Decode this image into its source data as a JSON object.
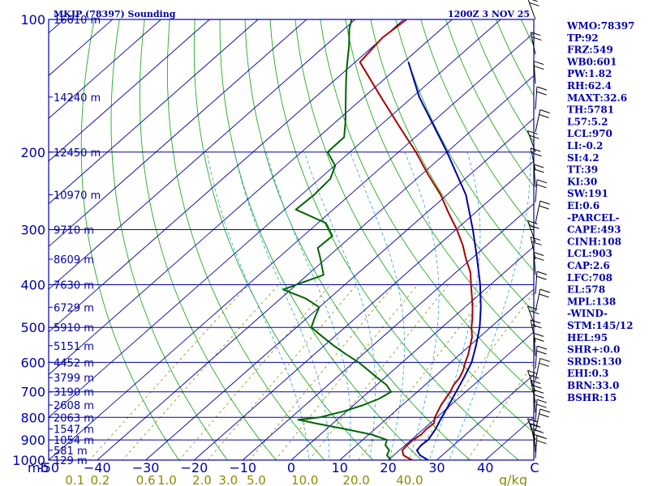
{
  "header": {
    "station": "MKJP (78397) Sounding",
    "time": "1200Z  3 NOV 25"
  },
  "units": {
    "pressure": "mb",
    "mixing_ratio": "g/kg"
  },
  "indices": [
    "WMO:78397",
    "TP:92",
    "FRZ:549",
    "WB0:601",
    "PW:1.82",
    "RH:62.4",
    "MAXT:32.6",
    "TH:5781",
    "L57:5.2",
    "LCL:970",
    "LI:-0.2",
    "SI:4.2",
    "TT:39",
    "KI:30",
    "SW:191",
    "EI:0.6",
    "-PARCEL-",
    "CAPE:493",
    "CINH:108",
    "LCL:903",
    "CAP:2.6",
    "LFC:708",
    "EL:578",
    "MPL:138",
    "-WIND-",
    "STM:145/12",
    "HEL:95",
    "SHR+:0.0",
    "SRDS:130",
    "EHI:0.3",
    "BRN:33.0",
    "BSHR:15"
  ],
  "chart_data": {
    "type": "line",
    "title": "MKJP (78397) Sounding",
    "subtitle": "1200Z  3 NOV 25",
    "xlabel": "",
    "ylabel": "mb",
    "ylim": [
      1000,
      100
    ],
    "xlim": [
      -50,
      50
    ],
    "y_log_scale": true,
    "pressure_levels": [
      100,
      200,
      300,
      400,
      500,
      600,
      700,
      800,
      900,
      1000
    ],
    "pressure_labels": [
      "100",
      "200",
      "300",
      "400",
      "500",
      "600",
      "700",
      "800",
      "900",
      "1000"
    ],
    "temperature_ticks": [
      -50,
      -40,
      -30,
      -20,
      -10,
      0,
      10,
      20,
      30,
      40
    ],
    "temperature_labels": [
      "-50",
      "−40",
      "−30",
      "−20",
      "−10",
      "0",
      "10",
      "20",
      "30",
      "40"
    ],
    "mixing_ratio_labels": [
      {
        "label": "0.1",
        "x": -44.6
      },
      {
        "label": "0.2",
        "x": -39.4
      },
      {
        "label": "0.6",
        "x": -30.0
      },
      {
        "label": "1.0",
        "x": -25.6
      },
      {
        "label": "2.0",
        "x": -18.4
      },
      {
        "label": "3.0",
        "x": -13.0
      },
      {
        "label": "5.0",
        "x": -7.2
      },
      {
        "label": "10.0",
        "x": 2.8
      },
      {
        "label": "20.0",
        "x": 13.4
      },
      {
        "label": "40.0",
        "x": 24.4
      }
    ],
    "height_labels": [
      {
        "p": 100,
        "label": "16610 m"
      },
      {
        "p": 150,
        "label": "14240 m"
      },
      {
        "p": 200,
        "label": "12450 m"
      },
      {
        "p": 250,
        "label": "10970 m"
      },
      {
        "p": 300,
        "label": "9710 m"
      },
      {
        "p": 350,
        "label": "8609 m"
      },
      {
        "p": 400,
        "label": "7630 m"
      },
      {
        "p": 450,
        "label": "6729 m"
      },
      {
        "p": 500,
        "label": "5910 m"
      },
      {
        "p": 550,
        "label": "5151 m"
      },
      {
        "p": 600,
        "label": "4452 m"
      },
      {
        "p": 650,
        "label": "3799 m"
      },
      {
        "p": 700,
        "label": "3190 m"
      },
      {
        "p": 750,
        "label": "2608 m"
      },
      {
        "p": 800,
        "label": "2063 m"
      },
      {
        "p": 850,
        "label": "1547 m"
      },
      {
        "p": 900,
        "label": "1054 m"
      },
      {
        "p": 950,
        "label": "581 m"
      },
      {
        "p": 1000,
        "label": "129 m"
      }
    ],
    "series": [
      {
        "color": "#aa0000",
        "points": [
          [
            1006,
            24.6
          ],
          [
            1000,
            24.8
          ],
          [
            975,
            22.0
          ],
          [
            950,
            20.6
          ],
          [
            925,
            20.4
          ],
          [
            900,
            20.4
          ],
          [
            875,
            20.8
          ],
          [
            850,
            20.6
          ],
          [
            825,
            20.8
          ],
          [
            800,
            19.6
          ],
          [
            775,
            18.8
          ],
          [
            750,
            18.0
          ],
          [
            725,
            17.4
          ],
          [
            700,
            16.8
          ],
          [
            675,
            15.9
          ],
          [
            650,
            15.4
          ],
          [
            625,
            14.4
          ],
          [
            600,
            13.0
          ],
          [
            575,
            11.7
          ],
          [
            550,
            10.1
          ],
          [
            525,
            8.4
          ],
          [
            500,
            6.1
          ],
          [
            475,
            4.0
          ],
          [
            450,
            1.6
          ],
          [
            425,
            -1.1
          ],
          [
            400,
            -4.0
          ],
          [
            375,
            -7.0
          ],
          [
            350,
            -11.0
          ],
          [
            325,
            -15.0
          ],
          [
            300,
            -19.8
          ],
          [
            275,
            -25.4
          ],
          [
            250,
            -31.3
          ],
          [
            225,
            -38.6
          ],
          [
            200,
            -46.4
          ],
          [
            175,
            -55.8
          ],
          [
            150,
            -66.5
          ],
          [
            125,
            -79.0
          ],
          [
            110,
            -80.1
          ],
          [
            100,
            -79.4
          ]
        ]
      },
      {
        "color": "#006400",
        "points": [
          [
            1006,
            20.8
          ],
          [
            1000,
            20.5
          ],
          [
            975,
            18.6
          ],
          [
            950,
            17.9
          ],
          [
            925,
            15.9
          ],
          [
            900,
            15.0
          ],
          [
            875,
            10.6
          ],
          [
            850,
            3.8
          ],
          [
            825,
            -3.6
          ],
          [
            810,
            -8.0
          ],
          [
            800,
            -4.2
          ],
          [
            775,
            -0.6
          ],
          [
            750,
            2.0
          ],
          [
            725,
            3.8
          ],
          [
            700,
            4.6
          ],
          [
            675,
            2.0
          ],
          [
            650,
            -1.6
          ],
          [
            625,
            -5.2
          ],
          [
            600,
            -9.0
          ],
          [
            575,
            -13.5
          ],
          [
            550,
            -18.0
          ],
          [
            525,
            -22.4
          ],
          [
            500,
            -26.9
          ],
          [
            475,
            -28.5
          ],
          [
            450,
            -30.0
          ],
          [
            430,
            -34.8
          ],
          [
            410,
            -41.6
          ],
          [
            400,
            -40.0
          ],
          [
            380,
            -36.7
          ],
          [
            350,
            -41.0
          ],
          [
            330,
            -44.2
          ],
          [
            310,
            -44.0
          ],
          [
            290,
            -48.3
          ],
          [
            270,
            -57.7
          ],
          [
            250,
            -57.4
          ],
          [
            230,
            -57.8
          ],
          [
            215,
            -59.8
          ],
          [
            200,
            -64.6
          ],
          [
            185,
            -64.7
          ],
          [
            170,
            -68.2
          ],
          [
            155,
            -72.3
          ],
          [
            140,
            -76.8
          ],
          [
            130,
            -80.0
          ],
          [
            115,
            -85.0
          ],
          [
            105,
            -89.0
          ],
          [
            100,
            -90.7
          ]
        ]
      },
      {
        "color": "#0000aa",
        "points": [
          [
            1006,
            29.0
          ],
          [
            1000,
            28.2
          ],
          [
            975,
            25.4
          ],
          [
            950,
            23.6
          ],
          [
            925,
            23.3
          ],
          [
            900,
            23.5
          ],
          [
            850,
            22.5
          ],
          [
            800,
            21.0
          ],
          [
            750,
            19.6
          ],
          [
            700,
            18.0
          ],
          [
            650,
            16.3
          ],
          [
            600,
            14.3
          ],
          [
            550,
            11.3
          ],
          [
            500,
            7.8
          ],
          [
            450,
            3.3
          ],
          [
            400,
            -2.1
          ],
          [
            350,
            -8.7
          ],
          [
            300,
            -16.5
          ],
          [
            250,
            -26.1
          ],
          [
            200,
            -40.0
          ],
          [
            150,
            -58.6
          ],
          [
            125,
            -69.0
          ]
        ]
      }
    ]
  }
}
